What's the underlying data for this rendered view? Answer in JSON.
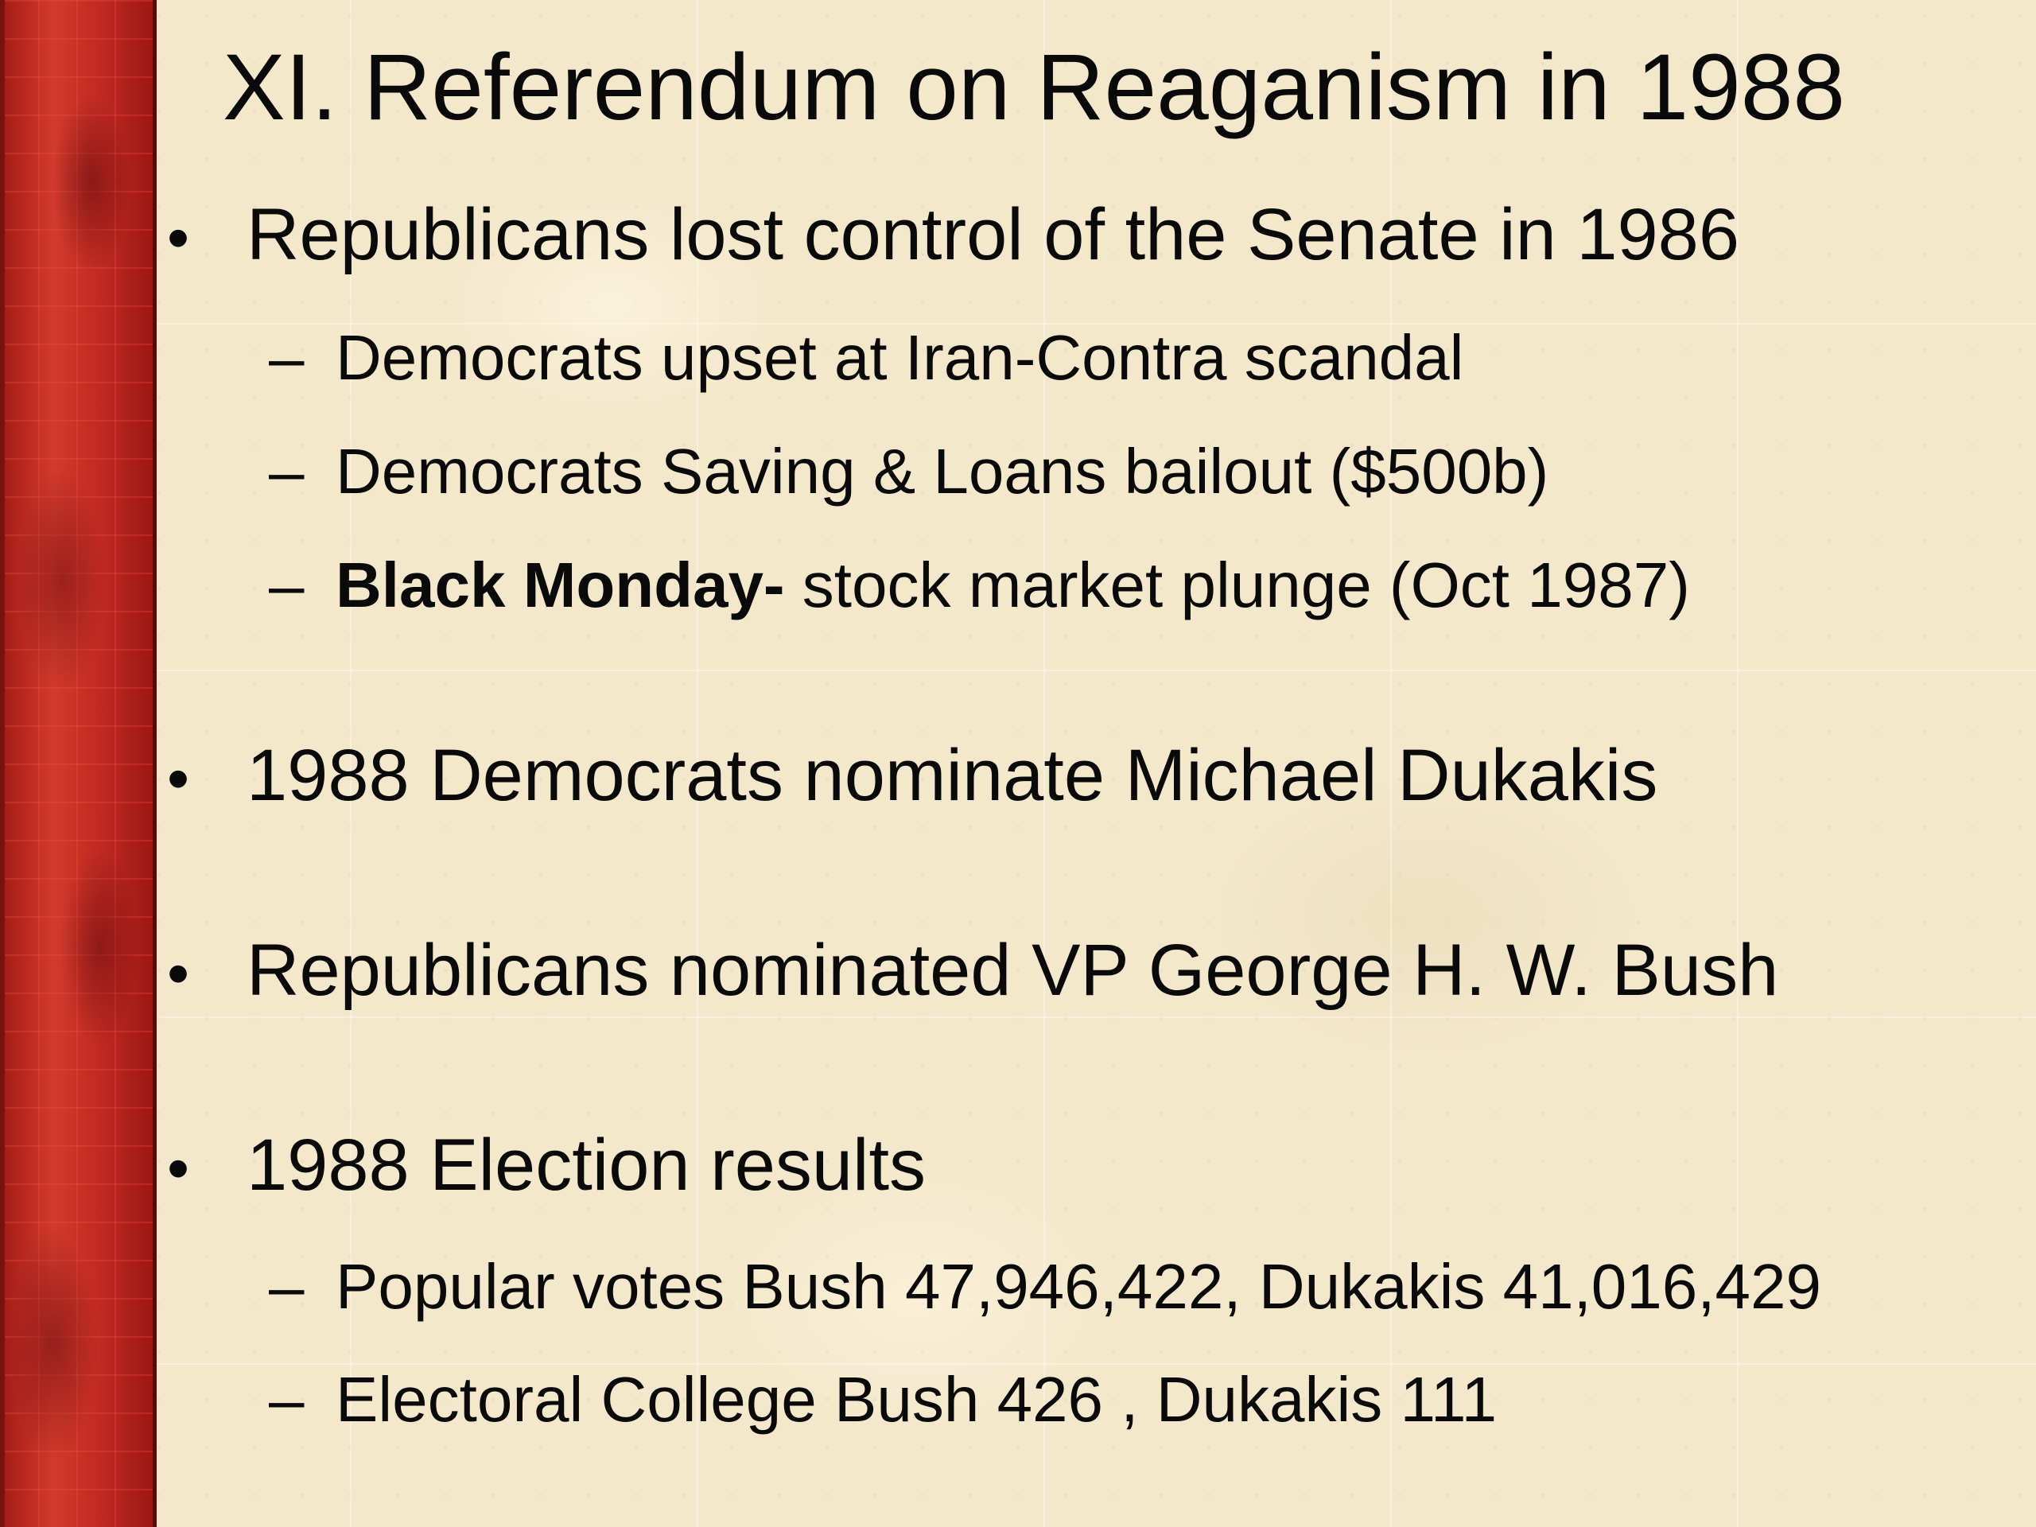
{
  "slide": {
    "title": "XI. Referendum on Reaganism in 1988",
    "bullet_marker": "•",
    "sub_marker": "–",
    "bullets": [
      {
        "text": "Republicans lost control of the Senate in 1986",
        "subitems": [
          {
            "text": "Democrats upset at Iran-Contra scandal"
          },
          {
            "text": "Democrats Saving & Loans bailout ($500b)"
          },
          {
            "bold": "Black Monday-",
            "text": " stock market plunge (Oct 1987)"
          }
        ]
      },
      {
        "text": "1988 Democrats nominate Michael Dukakis"
      },
      {
        "text": "Republicans nominated VP George H. W. Bush"
      },
      {
        "text": "1988 Election results",
        "subitems": [
          {
            "text": "Popular votes Bush 47,946,422, Dukakis 41,016,429"
          },
          {
            "text": "Electoral College Bush 426 , Dukakis 111"
          }
        ]
      }
    ]
  },
  "colors": {
    "background": "#f4e8cc",
    "side_bar": "#b3201b",
    "text": "#0a0a0a"
  }
}
